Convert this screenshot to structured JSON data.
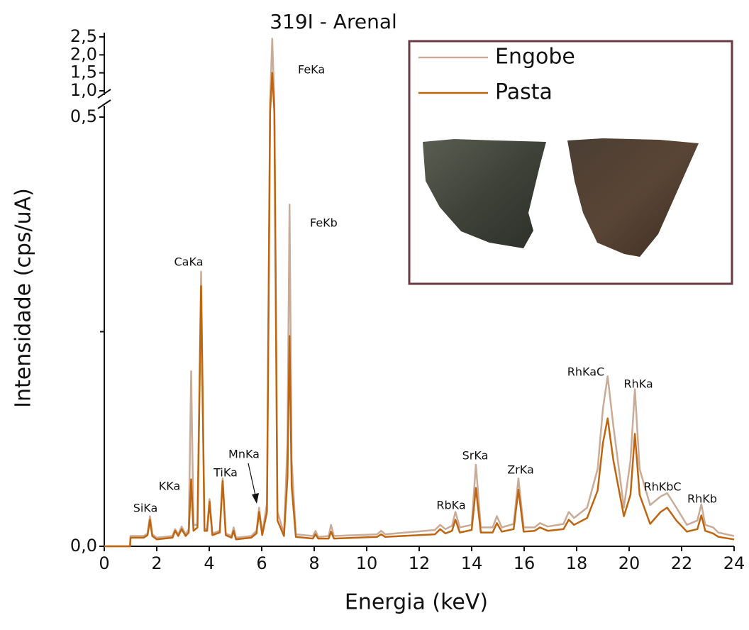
{
  "chart_data": {
    "type": "line",
    "title": "319I - Arenal",
    "x_label": "Energia (keV)",
    "y_label": "Intensidade (cps/uA)",
    "xlim": [
      0,
      24
    ],
    "xticks": [
      0,
      2,
      4,
      6,
      8,
      10,
      12,
      14,
      16,
      18,
      20,
      22,
      24
    ],
    "ylim": [
      0,
      2.5
    ],
    "ybreak": [
      0.5,
      1.0
    ],
    "yticks": [
      {
        "value": 0,
        "label": "0,0"
      },
      {
        "value": 0.5,
        "label": "0,5"
      },
      {
        "value": 1.0,
        "label": "1,0"
      },
      {
        "value": 1.5,
        "label": "1,5"
      },
      {
        "value": 2.0,
        "label": "2,0"
      },
      {
        "value": 2.5,
        "label": "2,5"
      }
    ],
    "yminorticks": [
      0.25
    ],
    "legend": "top-right",
    "annotations": [
      "SiKa",
      "KKa",
      "CaKa",
      "TiKa",
      "MnKa",
      "FeKa",
      "FeKb",
      "RbKa",
      "SrKa",
      "ZrKa",
      "RhKaC",
      "RhKa",
      "RhKbC",
      "RhKb"
    ],
    "x": [
      0,
      0.98,
      1.0,
      1.5,
      1.65,
      1.74,
      1.83,
      2.0,
      2.6,
      2.7,
      2.82,
      2.95,
      3.1,
      3.22,
      3.31,
      3.4,
      3.55,
      3.69,
      3.82,
      3.92,
      4.01,
      4.12,
      4.4,
      4.51,
      4.63,
      4.85,
      4.93,
      5.02,
      5.6,
      5.8,
      5.9,
      6.02,
      6.2,
      6.32,
      6.4,
      6.48,
      6.6,
      6.85,
      6.98,
      7.06,
      7.14,
      7.3,
      7.95,
      8.05,
      8.15,
      8.55,
      8.64,
      8.75,
      10.4,
      10.55,
      10.7,
      12.6,
      12.8,
      13.0,
      13.25,
      13.38,
      13.55,
      14.0,
      14.16,
      14.35,
      14.8,
      14.96,
      15.15,
      15.6,
      15.78,
      15.98,
      16.4,
      16.6,
      16.9,
      17.5,
      17.7,
      17.9,
      18.4,
      18.8,
      19.0,
      19.18,
      19.4,
      19.8,
      20.05,
      20.22,
      20.4,
      20.8,
      21.2,
      21.45,
      21.8,
      22.2,
      22.6,
      22.75,
      22.9,
      23.2,
      23.4,
      24
    ],
    "series": [
      {
        "name": "Engobe",
        "color": "#c9ab98",
        "values": [
          0,
          0,
          0.012,
          0.012,
          0.015,
          0.035,
          0.014,
          0.01,
          0.012,
          0.02,
          0.014,
          0.023,
          0.014,
          0.02,
          0.204,
          0.025,
          0.025,
          0.32,
          0.02,
          0.02,
          0.055,
          0.015,
          0.018,
          0.079,
          0.015,
          0.012,
          0.022,
          0.01,
          0.012,
          0.018,
          0.045,
          0.015,
          0.05,
          0.8,
          2.45,
          0.8,
          0.04,
          0.015,
          0.12,
          0.398,
          0.1,
          0.014,
          0.012,
          0.018,
          0.011,
          0.012,
          0.025,
          0.012,
          0.014,
          0.018,
          0.014,
          0.019,
          0.025,
          0.02,
          0.024,
          0.04,
          0.022,
          0.025,
          0.095,
          0.022,
          0.022,
          0.035,
          0.022,
          0.026,
          0.079,
          0.022,
          0.022,
          0.027,
          0.023,
          0.026,
          0.04,
          0.033,
          0.045,
          0.09,
          0.16,
          0.198,
          0.14,
          0.045,
          0.1,
          0.183,
          0.09,
          0.048,
          0.058,
          0.062,
          0.045,
          0.025,
          0.03,
          0.049,
          0.025,
          0.022,
          0.016,
          0.012
        ]
      },
      {
        "name": "Pasta",
        "color": "#c0650f",
        "values": [
          0,
          0,
          0.01,
          0.01,
          0.013,
          0.031,
          0.012,
          0.008,
          0.01,
          0.018,
          0.012,
          0.02,
          0.012,
          0.016,
          0.078,
          0.018,
          0.022,
          0.303,
          0.018,
          0.018,
          0.052,
          0.013,
          0.016,
          0.076,
          0.013,
          0.01,
          0.018,
          0.008,
          0.01,
          0.015,
          0.04,
          0.013,
          0.04,
          0.6,
          1.5,
          0.6,
          0.03,
          0.012,
          0.08,
          0.245,
          0.07,
          0.011,
          0.009,
          0.014,
          0.009,
          0.009,
          0.017,
          0.009,
          0.011,
          0.014,
          0.011,
          0.014,
          0.02,
          0.015,
          0.018,
          0.031,
          0.016,
          0.019,
          0.068,
          0.016,
          0.016,
          0.027,
          0.017,
          0.02,
          0.066,
          0.017,
          0.018,
          0.022,
          0.018,
          0.02,
          0.031,
          0.025,
          0.033,
          0.065,
          0.12,
          0.149,
          0.1,
          0.035,
          0.06,
          0.131,
          0.06,
          0.026,
          0.04,
          0.045,
          0.03,
          0.017,
          0.02,
          0.036,
          0.018,
          0.015,
          0.011,
          0.008
        ]
      }
    ]
  }
}
